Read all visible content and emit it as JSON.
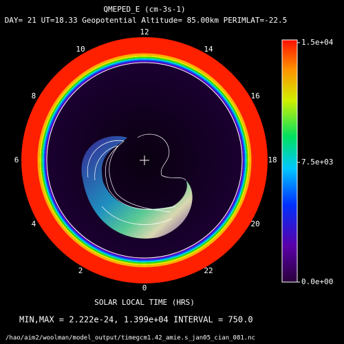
{
  "chart_data": {
    "type": "polar-contour",
    "title": "QMEPED_E (cm-3s-1)",
    "subtitle": "DAY= 21 UT=18.33 Geopotential Altitude= 85.00km PERIMLAT=-22.5",
    "hour_labels": [
      "12",
      "14",
      "16",
      "18",
      "20",
      "22",
      "0",
      "2",
      "4",
      "6",
      "8",
      "10"
    ],
    "xlabel": "SOLAR LOCAL TIME (HRS)",
    "colorbar": {
      "lim": [
        0,
        15000
      ],
      "ticks": [
        {
          "value": 0,
          "label": "0.0e+00"
        },
        {
          "value": 7500,
          "label": "7.5e+03"
        },
        {
          "value": 15000,
          "label": "1.5e+04"
        }
      ]
    },
    "stats": "MIN,MAX =  2.222e-24, 1.399e+04 INTERVAL =       750.0",
    "file": "/hao/aim2/woolman/model_output/timegcm1.42_amie.s_jan05_cian_081.nc"
  }
}
